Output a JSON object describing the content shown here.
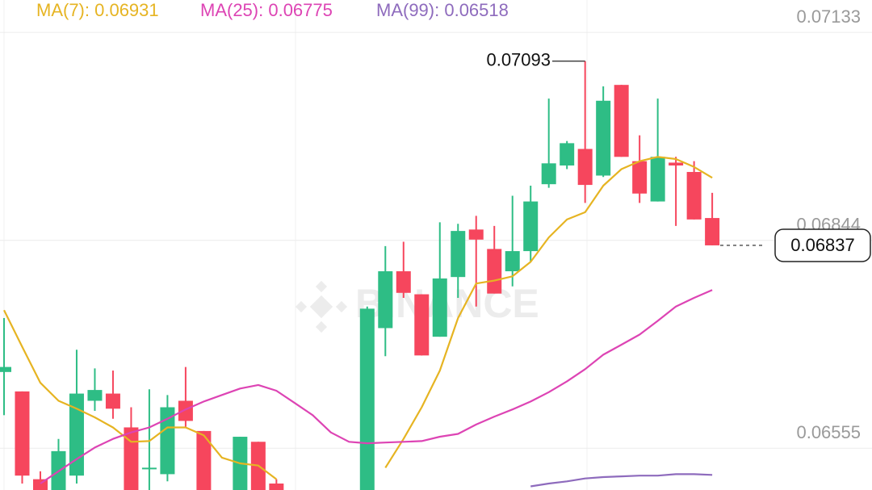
{
  "chart_data": {
    "type": "candlestick",
    "watermark": "BINANCE",
    "ylim": [
      0.06497,
      0.07178
    ],
    "yticks": [
      0.06555,
      0.06844,
      0.07133
    ],
    "grid": true,
    "up_color": "#2ebd85",
    "down_color": "#f6465d",
    "open": [
      0.06661,
      0.06634,
      0.06512,
      0.0648,
      0.06517,
      0.06621,
      0.06631,
      0.06584,
      0.06526,
      0.06519,
      0.06621,
      0.06579,
      null,
      0.0648,
      0.06564,
      0.06506,
      null,
      null,
      null,
      null,
      0.0648,
      0.06722,
      0.06801,
      0.06769,
      0.0671,
      0.06793,
      0.06859,
      0.06832,
      0.06801,
      0.06829,
      0.06922,
      0.06948,
      0.06971,
      0.06934,
      0.0706,
      0.06954,
      0.06898,
      0.06952,
      0.06939,
      0.06875
    ],
    "high": [
      0.06736,
      0.06634,
      0.06523,
      0.06568,
      0.06692,
      0.06666,
      0.06663,
      0.06612,
      0.06637,
      0.06629,
      0.06668,
      0.06579,
      null,
      0.06571,
      0.06564,
      0.06512,
      null,
      null,
      null,
      null,
      0.06752,
      0.06836,
      0.06842,
      0.06769,
      0.06869,
      0.06867,
      0.06878,
      0.06864,
      0.06906,
      0.0692,
      0.07041,
      0.06982,
      0.07093,
      0.07058,
      0.0706,
      0.0699,
      0.07041,
      0.0696,
      0.06954,
      0.0691
    ],
    "low": [
      0.06601,
      0.06506,
      0.0647,
      0.0647,
      0.06506,
      0.06607,
      0.06596,
      0.0647,
      0.0648,
      0.06509,
      0.06584,
      0.0647,
      null,
      0.0647,
      0.0647,
      0.0647,
      null,
      null,
      null,
      null,
      0.0647,
      0.06683,
      0.06764,
      0.06684,
      0.0671,
      0.06764,
      0.06752,
      0.0677,
      0.0678,
      0.06814,
      0.06917,
      0.06943,
      0.06896,
      0.06932,
      0.0696,
      0.06896,
      0.06898,
      0.06864,
      0.06873,
      0.06837
    ],
    "close": [
      0.06668,
      0.06517,
      0.0648,
      0.06551,
      0.06631,
      0.06636,
      0.0661,
      0.0648,
      0.06528,
      0.06612,
      0.06593,
      0.0648,
      null,
      0.06571,
      0.0648,
      0.0648,
      null,
      null,
      null,
      null,
      0.06749,
      0.06801,
      0.06771,
      0.06684,
      0.06791,
      0.06857,
      0.06845,
      0.0677,
      0.06829,
      0.06898,
      0.06951,
      0.06979,
      0.06921,
      0.07038,
      0.0696,
      0.06909,
      0.0696,
      0.06948,
      0.06873,
      0.06837
    ],
    "series": [
      {
        "name": "MA(7): 0.06931",
        "color": "#e6b422",
        "values": [
          0.06747,
          0.06696,
          0.06646,
          0.06621,
          0.0661,
          0.06598,
          0.06584,
          0.06564,
          0.06565,
          0.06584,
          0.06584,
          0.06573,
          0.06542,
          0.06534,
          0.06531,
          0.06512,
          null,
          null,
          null,
          null,
          null,
          0.06528,
          0.06568,
          0.06612,
          0.06663,
          0.06736,
          0.06784,
          0.06788,
          0.06794,
          0.06814,
          0.06848,
          0.06873,
          0.06883,
          0.0692,
          0.06943,
          0.06954,
          0.0696,
          0.06957,
          0.06946,
          0.06931
        ]
      },
      {
        "name": "MA(25): 0.06775",
        "color": "#dd44b4",
        "values": [
          null,
          null,
          0.06506,
          0.06523,
          0.0654,
          0.06556,
          0.06568,
          0.06577,
          0.06584,
          0.06596,
          0.06609,
          0.0662,
          0.06629,
          0.06638,
          0.06643,
          0.06635,
          0.06618,
          0.06601,
          0.06577,
          0.06564,
          0.06562,
          0.06563,
          0.06564,
          0.06565,
          0.06571,
          0.06575,
          0.06588,
          0.06599,
          0.06609,
          0.0662,
          0.06633,
          0.06648,
          0.06665,
          0.06685,
          0.06699,
          0.06713,
          0.06732,
          0.06752,
          0.06764,
          0.06775
        ]
      },
      {
        "name": "MA(99): 0.06518",
        "color": "#8e6bbd",
        "values": [
          null,
          null,
          null,
          null,
          null,
          null,
          null,
          null,
          null,
          null,
          null,
          null,
          null,
          null,
          null,
          null,
          null,
          null,
          null,
          null,
          null,
          null,
          null,
          null,
          null,
          null,
          null,
          null,
          null,
          0.06502,
          0.06506,
          0.06509,
          0.06513,
          0.06515,
          0.06516,
          0.06517,
          0.06517,
          0.06519,
          0.06519,
          0.06518
        ]
      }
    ],
    "high_marker": 0.07093,
    "last_price": 0.06837
  }
}
